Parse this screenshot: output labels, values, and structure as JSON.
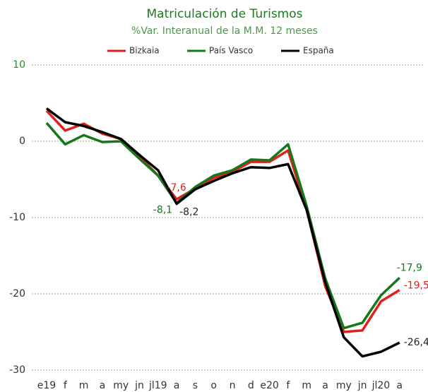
{
  "chart_data": {
    "type": "line",
    "title": "Matriculación de Turismos",
    "subtitle": "%Var. Interanual de la M.M. 12 meses",
    "categories": [
      "e19",
      "f",
      "m",
      "a",
      "my",
      "jn",
      "jl19",
      "a",
      "s",
      "o",
      "n",
      "d",
      "e20",
      "f",
      "m",
      "a",
      "my",
      "jn",
      "jl20",
      "a"
    ],
    "series": [
      {
        "name": "Bizkaia",
        "color": "#e0201b",
        "values": [
          4.0,
          1.4,
          2.3,
          1.0,
          0.3,
          -2.0,
          -4.5,
          -7.6,
          -6.2,
          -4.8,
          -4.0,
          -2.7,
          -2.7,
          -1.2,
          -9.0,
          -19.0,
          -25.0,
          -24.8,
          -21.0,
          -19.5
        ],
        "value_labels": [
          null,
          null,
          null,
          null,
          null,
          null,
          null,
          "-7,6",
          null,
          null,
          null,
          null,
          null,
          null,
          null,
          null,
          null,
          null,
          null,
          "-19,5"
        ]
      },
      {
        "name": "País Vasco",
        "color": "#17771a",
        "values": [
          2.4,
          -0.4,
          0.8,
          -0.1,
          0.0,
          -2.3,
          -4.5,
          -8.1,
          -6.0,
          -4.5,
          -3.8,
          -2.4,
          -2.5,
          -0.4,
          -8.5,
          -18.0,
          -24.5,
          -23.8,
          -20.2,
          -17.9
        ],
        "value_labels": [
          null,
          null,
          null,
          null,
          null,
          null,
          null,
          "-8,1",
          null,
          null,
          null,
          null,
          null,
          null,
          null,
          null,
          null,
          null,
          null,
          "-17,9"
        ]
      },
      {
        "name": "España",
        "color": "#000000",
        "values": [
          4.3,
          2.5,
          2.0,
          1.2,
          0.3,
          -1.8,
          -3.8,
          -8.2,
          -6.3,
          -5.2,
          -4.2,
          -3.4,
          -3.5,
          -3.0,
          -9.0,
          -18.5,
          -25.7,
          -28.2,
          -27.6,
          -26.4
        ],
        "value_labels": [
          null,
          null,
          null,
          null,
          null,
          null,
          null,
          "-8,2",
          null,
          null,
          null,
          null,
          null,
          null,
          null,
          null,
          null,
          null,
          null,
          "-26,4"
        ]
      }
    ],
    "ylim": [
      -30,
      10
    ],
    "yticks": [
      -30,
      -20,
      -10,
      0,
      10
    ],
    "grid": true,
    "legend": "top"
  }
}
